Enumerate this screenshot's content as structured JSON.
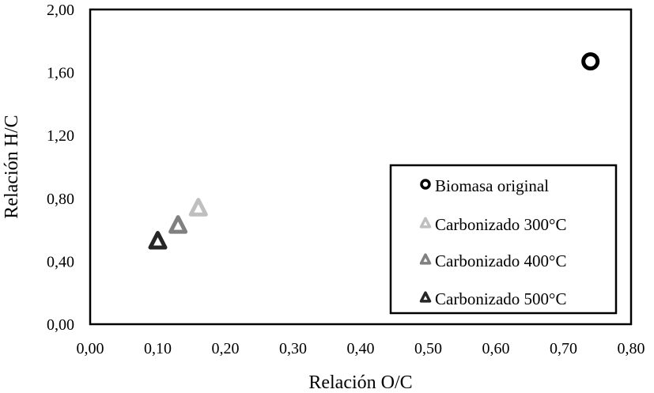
{
  "chart_data": {
    "type": "scatter",
    "title": "",
    "xlabel": "Relación O/C",
    "ylabel": "Relación H/C",
    "xlim": [
      0,
      0.8
    ],
    "ylim": [
      0,
      2
    ],
    "xticks": [
      "0,00",
      "0,10",
      "0,20",
      "0,30",
      "0,40",
      "0,50",
      "0,60",
      "0,70",
      "0,80"
    ],
    "yticks": [
      "0,00",
      "0,40",
      "0,80",
      "1,20",
      "1,60",
      "2,00"
    ],
    "grid": false,
    "legend_position": "bottom-right",
    "series": [
      {
        "name": "Biomasa original",
        "marker": "circle",
        "color": "#000000",
        "points": [
          {
            "x": 0.74,
            "y": 1.67
          }
        ]
      },
      {
        "name": "Carbonizado 300°C",
        "marker": "triangle",
        "color": "#bfbfbf",
        "points": [
          {
            "x": 0.16,
            "y": 0.74
          }
        ]
      },
      {
        "name": "Carbonizado 400°C",
        "marker": "triangle",
        "color": "#808080",
        "points": [
          {
            "x": 0.13,
            "y": 0.63
          }
        ]
      },
      {
        "name": "Carbonizado 500°C",
        "marker": "triangle",
        "color": "#262626",
        "points": [
          {
            "x": 0.1,
            "y": 0.53
          }
        ]
      }
    ]
  }
}
